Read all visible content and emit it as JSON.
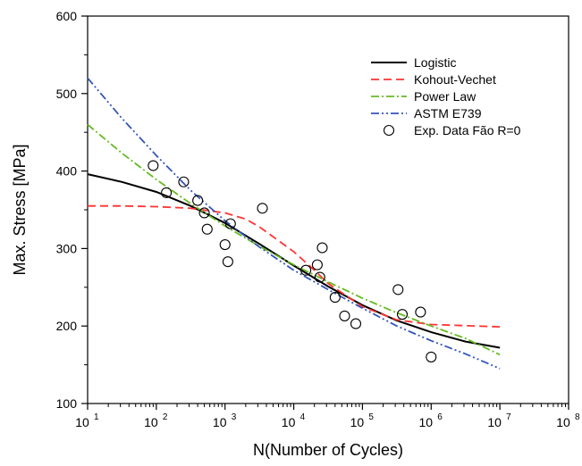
{
  "chart_data": {
    "type": "line",
    "title": "",
    "xlabel": "N(Number of Cycles)",
    "ylabel": "Max. Stress [MPa]",
    "xscale": "log",
    "xlim": [
      10,
      100000000
    ],
    "ylim": [
      100,
      600
    ],
    "x_tick_labels": [
      {
        "base": "10",
        "exp": "1"
      },
      {
        "base": "10",
        "exp": "2"
      },
      {
        "base": "10",
        "exp": "3"
      },
      {
        "base": "10",
        "exp": "4"
      },
      {
        "base": "10",
        "exp": "5"
      },
      {
        "base": "10",
        "exp": "6"
      },
      {
        "base": "10",
        "exp": "7"
      },
      {
        "base": "10",
        "exp": "8"
      }
    ],
    "y_tick_labels": [
      "100",
      "200",
      "300",
      "400",
      "500",
      "600"
    ],
    "y_ticks": [
      100,
      200,
      300,
      400,
      500,
      600
    ],
    "grid": false,
    "legend_position": "top-right",
    "series": [
      {
        "name": "Logistic",
        "style": "solid",
        "color": "#000000",
        "x": [
          10,
          31.6,
          100,
          316,
          1000,
          3162,
          10000,
          31623,
          100000,
          316228,
          1000000,
          3162278,
          10000000
        ],
        "y": [
          396,
          386,
          373,
          355,
          333,
          306,
          278,
          251,
          227,
          207,
          192,
          180,
          172
        ]
      },
      {
        "name": "Kohout-Vechet",
        "style": "dashed",
        "color": "#ff3333",
        "x": [
          10,
          31.6,
          100,
          316,
          1000,
          2000,
          3162,
          10000,
          20000,
          31623,
          100000,
          316228,
          1000000,
          10000000
        ],
        "y": [
          355,
          355,
          354,
          352,
          346,
          338,
          328,
          296,
          272,
          255,
          225,
          208,
          202,
          199
        ]
      },
      {
        "name": "Power Law",
        "style": "dash-dot",
        "color": "#66bb22",
        "x": [
          10,
          31.6,
          100,
          316,
          1000,
          3162,
          10000,
          31623,
          100000,
          316228,
          1000000,
          3162278,
          10000000
        ],
        "y": [
          460,
          423,
          389,
          358,
          329,
          303,
          279,
          257,
          236,
          217,
          200,
          184,
          163
        ]
      },
      {
        "name": "ASTM E739",
        "style": "dash-dot-dot",
        "color": "#3355bb",
        "x": [
          10,
          31.6,
          100,
          316,
          1000,
          3162,
          10000,
          31623,
          100000,
          316228,
          1000000,
          3162278,
          10000000
        ],
        "y": [
          520,
          468,
          420,
          375,
          336,
          302,
          272,
          247,
          223,
          200,
          181,
          164,
          145
        ]
      },
      {
        "name": "Exp. Data Fão R=0",
        "style": "marker-open-circle",
        "color": "#000000",
        "x": [
          90,
          140,
          250,
          400,
          500,
          550,
          1000,
          1100,
          1200,
          3500,
          15000,
          22000,
          24000,
          26000,
          40000,
          55000,
          80000,
          330000,
          380000,
          700000,
          1000000
        ],
        "y": [
          407,
          372,
          386,
          362,
          346,
          325,
          305,
          283,
          332,
          352,
          272,
          279,
          263,
          301,
          237,
          213,
          203,
          247,
          215,
          218,
          160
        ]
      }
    ]
  }
}
